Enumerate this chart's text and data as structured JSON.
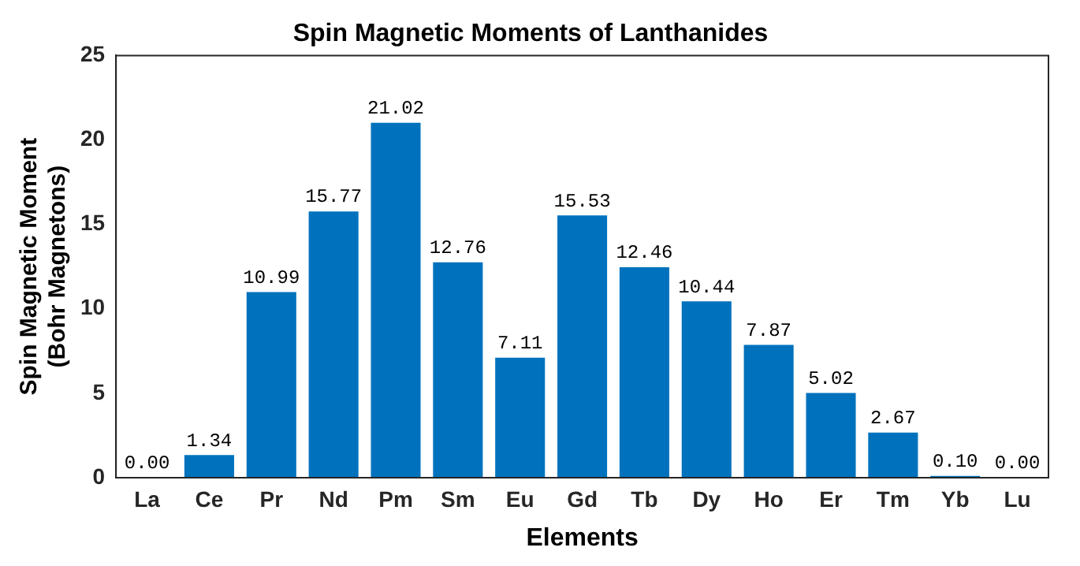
{
  "chart_data": {
    "type": "bar",
    "title": "Spin Magnetic Moments of Lanthanides",
    "xlabel": "Elements",
    "ylabel": "Spin Magnetic Moment\n(Bohr Magnetons)",
    "categories": [
      "La",
      "Ce",
      "Pr",
      "Nd",
      "Pm",
      "Sm",
      "Eu",
      "Gd",
      "Tb",
      "Dy",
      "Ho",
      "Er",
      "Tm",
      "Yb",
      "Lu"
    ],
    "values": [
      0.0,
      1.34,
      10.99,
      15.77,
      21.02,
      12.76,
      7.11,
      15.53,
      12.46,
      10.44,
      7.87,
      5.02,
      2.67,
      0.1,
      0.0
    ],
    "color": "#0072bd",
    "value_labels": [
      "0.00",
      "1.34",
      "10.99",
      "15.77",
      "21.02",
      "12.76",
      "7.11",
      "15.53",
      "12.46",
      "10.44",
      "7.87",
      "5.02",
      "2.67",
      "0.10",
      "0.00"
    ],
    "ylim": [
      0,
      25
    ],
    "yticks": [
      0,
      5,
      10,
      15,
      20,
      25
    ],
    "grid": false,
    "legend": false
  }
}
